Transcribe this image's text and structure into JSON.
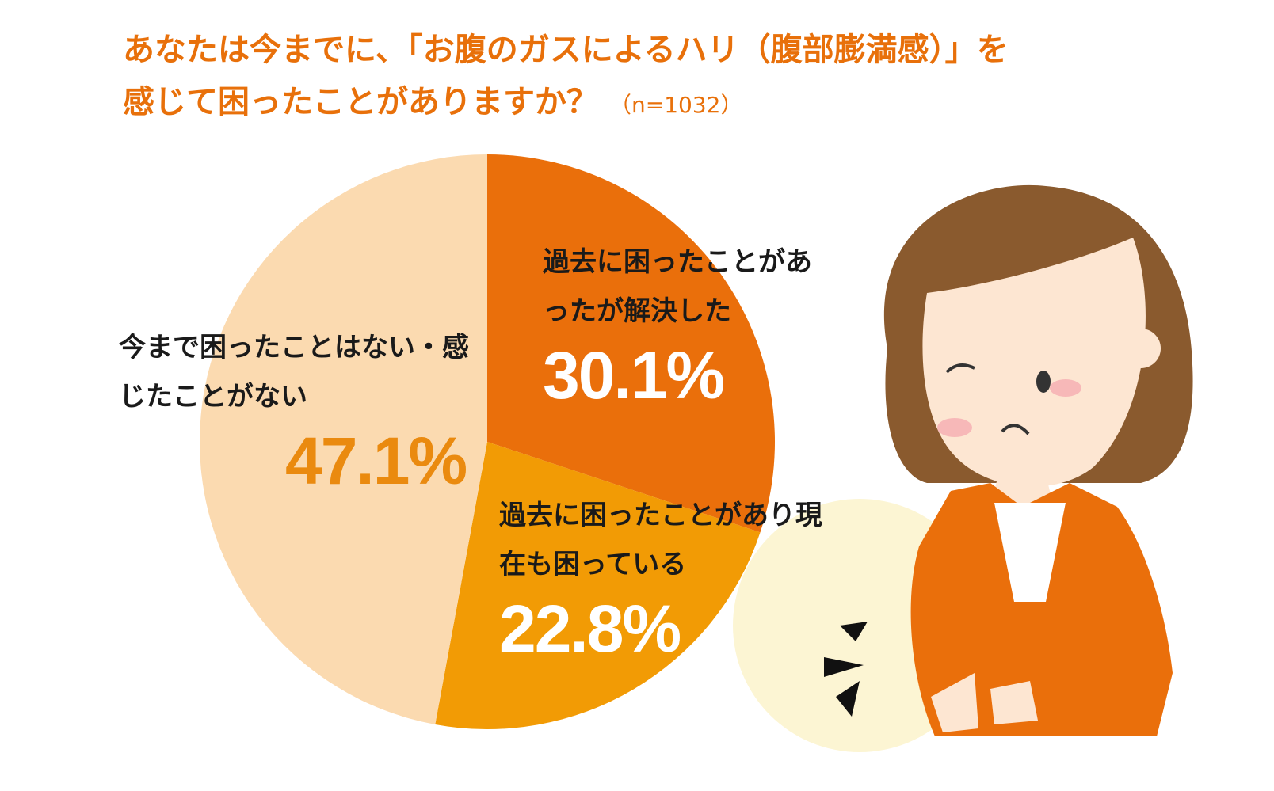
{
  "chart_data": {
    "type": "pie",
    "title": [
      "あなたは今までに、「お腹のガスによるハリ（腹部膨満感）」を",
      "感じて困ったことがありますか？"
    ],
    "subtitle": "（n=1032）",
    "categories": [
      "過去に困ったことがあったが解決した",
      "過去に困ったことがあり現在も困っている",
      "今まで困ったことはない・感じたことがない"
    ],
    "values": [
      30.1,
      22.8,
      47.1
    ],
    "value_labels": [
      "30.1%",
      "22.8%",
      "47.1%"
    ],
    "colors": [
      "#ea6f0b",
      "#f29b05",
      "#fbdab0"
    ]
  }
}
